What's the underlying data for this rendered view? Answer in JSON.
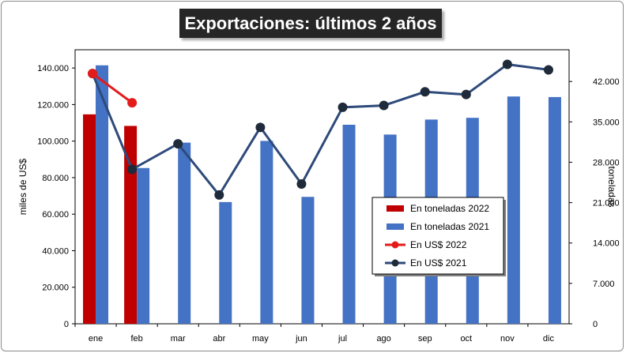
{
  "chart_data": {
    "type": "bar",
    "title": "Exportaciones: últimos 2 años",
    "ylabel": "miles de US$",
    "y2label": "toneladas",
    "categories": [
      "ene",
      "feb",
      "mar",
      "abr",
      "may",
      "jun",
      "jul",
      "ago",
      "sep",
      "oct",
      "nov",
      "dic"
    ],
    "ylim": [
      0,
      150000
    ],
    "y2lim": [
      0,
      47500
    ],
    "yticks": [
      "0",
      "20.000",
      "40.000",
      "60.000",
      "80.000",
      "100.000",
      "120.000",
      "140.000"
    ],
    "y2ticks": [
      "0",
      "7.000",
      "14.000",
      "21.000",
      "28.000",
      "35.000",
      "42.000"
    ],
    "y2tick_values": [
      0,
      7000,
      14000,
      21000,
      28000,
      35000,
      42000
    ],
    "bar_series": [
      {
        "name": "En toneladas 2022",
        "color": "#c00000",
        "values": [
          36300,
          34300,
          null,
          null,
          null,
          null,
          null,
          null,
          null,
          null,
          null,
          null
        ]
      },
      {
        "name": "En toneladas 2021",
        "color": "#4472c4",
        "values": [
          44800,
          27000,
          31400,
          21100,
          31700,
          22000,
          34500,
          32800,
          35400,
          35700,
          39400,
          39300
        ]
      }
    ],
    "line_series": [
      {
        "name": "En US$ 2022",
        "color": "#e31b1b",
        "values": [
          137000,
          121000,
          null,
          null,
          null,
          null,
          null,
          null,
          null,
          null,
          null,
          null
        ]
      },
      {
        "name": "En US$ 2021",
        "color": "#2e4a7a",
        "marker": "#1f2a3a",
        "values": [
          137000,
          84500,
          98500,
          70500,
          107500,
          76500,
          118500,
          119500,
          127000,
          125500,
          142000,
          139000
        ]
      }
    ],
    "legend_position": "right-center",
    "legend_order": [
      "En toneladas 2022",
      "En toneladas 2021",
      "En US$ 2022",
      "En US$ 2021"
    ],
    "grid": false
  }
}
